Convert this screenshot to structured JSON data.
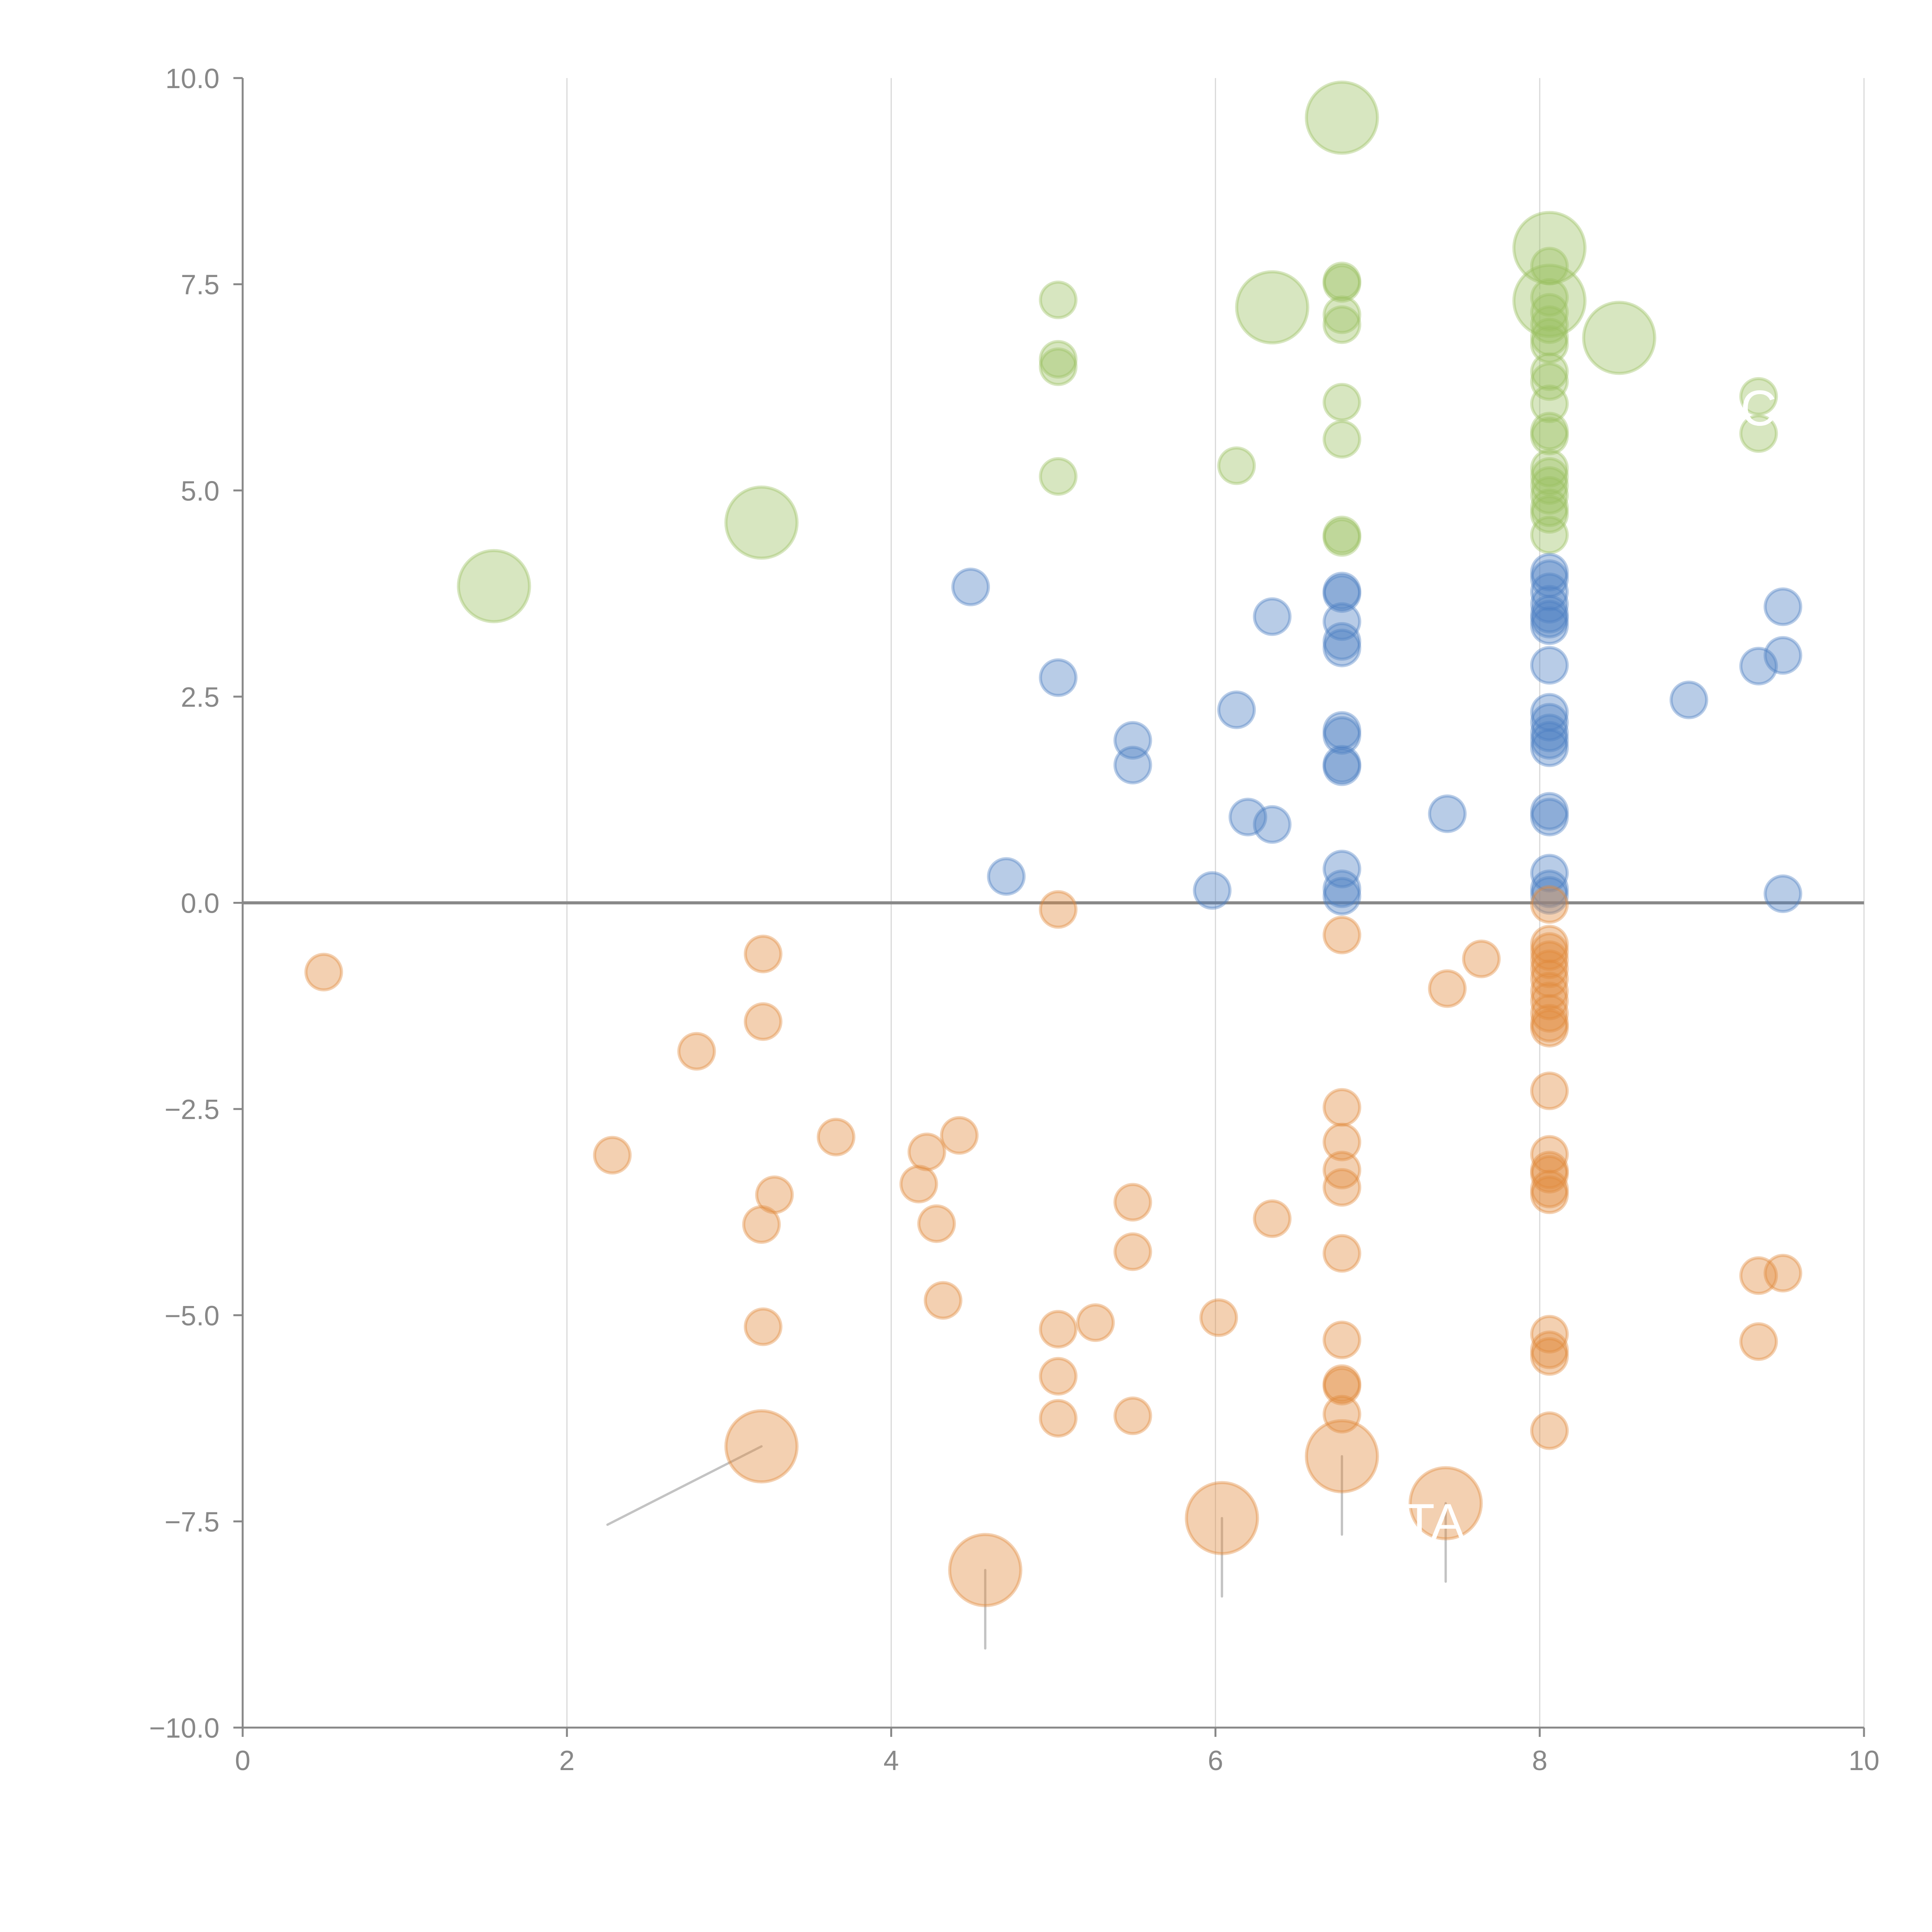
{
  "chart_data": {
    "type": "scatter",
    "title": "",
    "xlabel": "",
    "ylabel": "",
    "xlim": [
      0,
      10
    ],
    "ylim": [
      -10,
      10
    ],
    "x_ticks": [
      0,
      2,
      4,
      6,
      8,
      10
    ],
    "x_tick_labels": [
      "0",
      "2",
      "4",
      "6",
      "8",
      "10"
    ],
    "y_ticks": [
      10,
      7.5,
      5,
      2.5,
      0,
      -2.5,
      -5,
      -7.5,
      -10
    ],
    "y_tick_labels": [
      "10.0",
      "7.5",
      "5.0",
      "2.5",
      "0.0",
      "−2.5",
      "−5.0",
      "−7.5",
      "−10.0"
    ],
    "grid": "vertical",
    "zero_line": true,
    "colors": {
      "axis": "#888888",
      "grid": "#d9d9d9",
      "leader": "#bdbdbd",
      "label": "#ffffff"
    },
    "series": [
      {
        "name": "green",
        "color": "#9bc061",
        "points": [
          {
            "x": 5.03,
            "y": 7.31,
            "s": 1
          },
          {
            "x": 5.03,
            "y": 6.59,
            "s": 1
          },
          {
            "x": 5.03,
            "y": 6.5,
            "s": 1
          },
          {
            "x": 5.03,
            "y": 5.17,
            "s": 1
          },
          {
            "x": 6.13,
            "y": 5.3,
            "s": 1
          },
          {
            "x": 6.78,
            "y": 7.54,
            "s": 1
          },
          {
            "x": 6.78,
            "y": 7.51,
            "s": 1
          },
          {
            "x": 6.78,
            "y": 7.13,
            "s": 1
          },
          {
            "x": 6.78,
            "y": 7.01,
            "s": 1
          },
          {
            "x": 6.78,
            "y": 6.07,
            "s": 1
          },
          {
            "x": 6.78,
            "y": 5.62,
            "s": 1
          },
          {
            "x": 6.78,
            "y": 4.46,
            "s": 1
          },
          {
            "x": 6.78,
            "y": 4.43,
            "s": 1
          },
          {
            "x": 9.35,
            "y": 6.14,
            "s": 1
          },
          {
            "x": 9.35,
            "y": 5.69,
            "s": 1
          },
          {
            "x": 8.06,
            "y": 7.72,
            "s": 1
          },
          {
            "x": 8.06,
            "y": 7.34,
            "s": 1
          },
          {
            "x": 8.06,
            "y": 7.16,
            "s": 1
          },
          {
            "x": 8.06,
            "y": 7.01,
            "s": 1
          },
          {
            "x": 8.06,
            "y": 6.86,
            "s": 1
          },
          {
            "x": 8.06,
            "y": 6.77,
            "s": 1
          },
          {
            "x": 8.06,
            "y": 6.44,
            "s": 1
          },
          {
            "x": 8.06,
            "y": 6.32,
            "s": 1
          },
          {
            "x": 8.06,
            "y": 6.05,
            "s": 1
          },
          {
            "x": 8.06,
            "y": 5.72,
            "s": 1
          },
          {
            "x": 8.06,
            "y": 5.66,
            "s": 1
          },
          {
            "x": 8.06,
            "y": 5.27,
            "s": 1
          },
          {
            "x": 8.06,
            "y": 5.17,
            "s": 1
          },
          {
            "x": 8.06,
            "y": 5.06,
            "s": 1
          },
          {
            "x": 8.06,
            "y": 4.94,
            "s": 1
          },
          {
            "x": 8.06,
            "y": 4.79,
            "s": 1
          },
          {
            "x": 8.06,
            "y": 4.71,
            "s": 1
          },
          {
            "x": 8.06,
            "y": 4.46,
            "s": 1
          },
          {
            "x": 6.78,
            "y": 9.52,
            "s": 2,
            "leader": [
              -0.2,
              0.05
            ]
          },
          {
            "x": 8.06,
            "y": 7.94,
            "s": 2,
            "leader": [
              0.2,
              0.25
            ]
          },
          {
            "x": 8.06,
            "y": 7.3,
            "s": 2,
            "leader": [
              -0.15,
              0.3
            ]
          },
          {
            "x": 6.35,
            "y": 7.22,
            "s": 2,
            "leader": [
              0.2,
              -0.3
            ]
          },
          {
            "x": 8.49,
            "y": 6.85,
            "s": 2,
            "leader": [
              0.2,
              -0.25
            ]
          },
          {
            "x": 3.2,
            "y": 4.61,
            "s": 2
          },
          {
            "x": 1.55,
            "y": 3.84,
            "s": 2
          }
        ]
      },
      {
        "name": "blue",
        "color": "#4e7fc4",
        "points": [
          {
            "x": 4.49,
            "y": 3.83,
            "s": 1
          },
          {
            "x": 5.03,
            "y": 2.73,
            "s": 1
          },
          {
            "x": 5.49,
            "y": 1.97,
            "s": 1
          },
          {
            "x": 5.49,
            "y": 1.67,
            "s": 1
          },
          {
            "x": 4.71,
            "y": 0.32,
            "s": 1
          },
          {
            "x": 5.98,
            "y": 0.15,
            "s": 1
          },
          {
            "x": 6.13,
            "y": 2.34,
            "s": 1
          },
          {
            "x": 6.2,
            "y": 1.04,
            "s": 1
          },
          {
            "x": 6.35,
            "y": 0.95,
            "s": 1
          },
          {
            "x": 6.35,
            "y": 3.47,
            "s": 1
          },
          {
            "x": 6.78,
            "y": 3.78,
            "s": 1
          },
          {
            "x": 6.78,
            "y": 3.75,
            "s": 1
          },
          {
            "x": 6.78,
            "y": 3.41,
            "s": 1
          },
          {
            "x": 6.78,
            "y": 3.17,
            "s": 1
          },
          {
            "x": 6.78,
            "y": 3.09,
            "s": 1
          },
          {
            "x": 6.78,
            "y": 2.09,
            "s": 1
          },
          {
            "x": 6.78,
            "y": 2.03,
            "s": 1
          },
          {
            "x": 6.78,
            "y": 1.68,
            "s": 1
          },
          {
            "x": 6.78,
            "y": 1.65,
            "s": 1
          },
          {
            "x": 6.78,
            "y": 0.41,
            "s": 1
          },
          {
            "x": 6.78,
            "y": 0.17,
            "s": 1
          },
          {
            "x": 6.78,
            "y": 0.08,
            "s": 1
          },
          {
            "x": 7.43,
            "y": 1.08,
            "s": 1
          },
          {
            "x": 8.92,
            "y": 2.46,
            "s": 1
          },
          {
            "x": 9.35,
            "y": 2.87,
            "s": 1
          },
          {
            "x": 9.5,
            "y": 3.59,
            "s": 1
          },
          {
            "x": 9.5,
            "y": 3.0,
            "s": 1
          },
          {
            "x": 9.5,
            "y": 0.11,
            "s": 1
          },
          {
            "x": 8.06,
            "y": 4.01,
            "s": 1
          },
          {
            "x": 8.06,
            "y": 3.93,
            "s": 1
          },
          {
            "x": 8.06,
            "y": 3.77,
            "s": 1
          },
          {
            "x": 8.06,
            "y": 3.62,
            "s": 1
          },
          {
            "x": 8.06,
            "y": 3.5,
            "s": 1
          },
          {
            "x": 8.06,
            "y": 3.44,
            "s": 1
          },
          {
            "x": 8.06,
            "y": 3.36,
            "s": 1
          },
          {
            "x": 8.06,
            "y": 2.88,
            "s": 1
          },
          {
            "x": 8.06,
            "y": 2.31,
            "s": 1
          },
          {
            "x": 8.06,
            "y": 2.19,
            "s": 1
          },
          {
            "x": 8.06,
            "y": 2.06,
            "s": 1
          },
          {
            "x": 8.06,
            "y": 1.97,
            "s": 1
          },
          {
            "x": 8.06,
            "y": 1.88,
            "s": 1
          },
          {
            "x": 8.06,
            "y": 1.11,
            "s": 1
          },
          {
            "x": 8.06,
            "y": 1.04,
            "s": 1
          },
          {
            "x": 8.06,
            "y": 0.36,
            "s": 1
          },
          {
            "x": 8.06,
            "y": 0.17,
            "s": 1
          },
          {
            "x": 8.06,
            "y": 0.09,
            "s": 1
          }
        ]
      },
      {
        "name": "orange",
        "color": "#e08a3c",
        "points": [
          {
            "x": 0.5,
            "y": -0.84,
            "s": 1
          },
          {
            "x": 3.21,
            "y": -0.62,
            "s": 1
          },
          {
            "x": 3.21,
            "y": -1.44,
            "s": 1
          },
          {
            "x": 2.8,
            "y": -1.8,
            "s": 1
          },
          {
            "x": 2.28,
            "y": -3.06,
            "s": 1
          },
          {
            "x": 3.66,
            "y": -2.84,
            "s": 1
          },
          {
            "x": 3.28,
            "y": -3.54,
            "s": 1
          },
          {
            "x": 3.2,
            "y": -3.9,
            "s": 1
          },
          {
            "x": 3.21,
            "y": -5.14,
            "s": 1
          },
          {
            "x": 4.22,
            "y": -3.02,
            "s": 1
          },
          {
            "x": 4.42,
            "y": -2.82,
            "s": 1
          },
          {
            "x": 4.17,
            "y": -3.41,
            "s": 1
          },
          {
            "x": 4.28,
            "y": -3.89,
            "s": 1
          },
          {
            "x": 4.32,
            "y": -4.82,
            "s": 1
          },
          {
            "x": 5.03,
            "y": -0.08,
            "s": 1
          },
          {
            "x": 5.03,
            "y": -5.17,
            "s": 1
          },
          {
            "x": 5.03,
            "y": -5.74,
            "s": 1
          },
          {
            "x": 5.03,
            "y": -6.25,
            "s": 1
          },
          {
            "x": 5.26,
            "y": -5.09,
            "s": 1
          },
          {
            "x": 5.49,
            "y": -3.63,
            "s": 1
          },
          {
            "x": 5.49,
            "y": -4.23,
            "s": 1
          },
          {
            "x": 5.49,
            "y": -6.22,
            "s": 1
          },
          {
            "x": 6.02,
            "y": -5.03,
            "s": 1
          },
          {
            "x": 6.35,
            "y": -3.83,
            "s": 1
          },
          {
            "x": 6.78,
            "y": -0.39,
            "s": 1
          },
          {
            "x": 6.78,
            "y": -2.48,
            "s": 1
          },
          {
            "x": 6.78,
            "y": -2.9,
            "s": 1
          },
          {
            "x": 6.78,
            "y": -3.24,
            "s": 1
          },
          {
            "x": 6.78,
            "y": -3.45,
            "s": 1
          },
          {
            "x": 6.78,
            "y": -4.25,
            "s": 1
          },
          {
            "x": 6.78,
            "y": -5.3,
            "s": 1
          },
          {
            "x": 6.78,
            "y": -5.83,
            "s": 1
          },
          {
            "x": 6.78,
            "y": -5.86,
            "s": 1
          },
          {
            "x": 6.78,
            "y": -6.2,
            "s": 1
          },
          {
            "x": 7.43,
            "y": -1.04,
            "s": 1
          },
          {
            "x": 7.64,
            "y": -0.68,
            "s": 1
          },
          {
            "x": 9.35,
            "y": -4.52,
            "s": 1
          },
          {
            "x": 9.5,
            "y": -4.49,
            "s": 1
          },
          {
            "x": 9.35,
            "y": -5.32,
            "s": 1
          },
          {
            "x": 8.06,
            "y": -0.02,
            "s": 1
          },
          {
            "x": 8.06,
            "y": -0.5,
            "s": 1
          },
          {
            "x": 8.06,
            "y": -0.59,
            "s": 1
          },
          {
            "x": 8.06,
            "y": -0.69,
            "s": 1
          },
          {
            "x": 8.06,
            "y": -0.8,
            "s": 1
          },
          {
            "x": 8.06,
            "y": -0.92,
            "s": 1
          },
          {
            "x": 8.06,
            "y": -1.07,
            "s": 1
          },
          {
            "x": 8.06,
            "y": -1.19,
            "s": 1
          },
          {
            "x": 8.06,
            "y": -1.34,
            "s": 1
          },
          {
            "x": 8.06,
            "y": -1.46,
            "s": 1
          },
          {
            "x": 8.06,
            "y": -1.52,
            "s": 1
          },
          {
            "x": 8.06,
            "y": -2.28,
            "s": 1
          },
          {
            "x": 8.06,
            "y": -3.05,
            "s": 1
          },
          {
            "x": 8.06,
            "y": -3.24,
            "s": 1
          },
          {
            "x": 8.06,
            "y": -3.29,
            "s": 1
          },
          {
            "x": 8.06,
            "y": -3.47,
            "s": 1
          },
          {
            "x": 8.06,
            "y": -3.54,
            "s": 1
          },
          {
            "x": 8.06,
            "y": -5.23,
            "s": 1
          },
          {
            "x": 8.06,
            "y": -5.42,
            "s": 1
          },
          {
            "x": 8.06,
            "y": -5.5,
            "s": 1
          },
          {
            "x": 8.06,
            "y": -6.4,
            "s": 1
          },
          {
            "x": 3.2,
            "y": -6.59,
            "s": 2,
            "leader": [
              -0.95,
              -0.95
            ]
          },
          {
            "x": 4.58,
            "y": -8.09,
            "s": 2,
            "leader": [
              0,
              -0.95
            ]
          },
          {
            "x": 6.04,
            "y": -7.46,
            "s": 2,
            "leader": [
              0,
              -0.95
            ]
          },
          {
            "x": 6.78,
            "y": -6.71,
            "s": 2,
            "leader": [
              0,
              -0.95
            ]
          },
          {
            "x": 7.42,
            "y": -7.28,
            "s": 2,
            "leader": [
              0,
              -0.95
            ]
          }
        ]
      }
    ],
    "annotations": [
      {
        "text": "C",
        "x": 9.35,
        "y": 6.0
      },
      {
        "text": "TA",
        "x": 7.35,
        "y": -7.5
      }
    ]
  }
}
